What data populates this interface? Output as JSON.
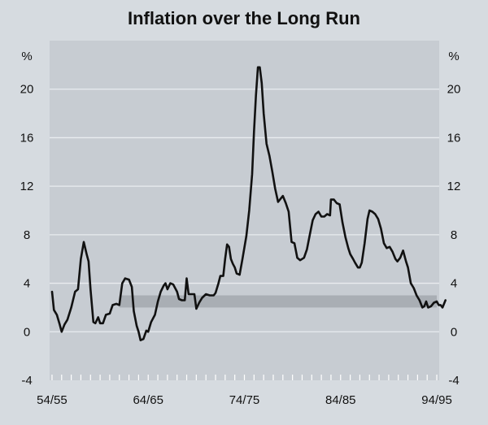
{
  "chart_data": {
    "type": "line",
    "title": "Inflation over the Long Run",
    "y_unit_left": "%",
    "y_unit_right": "%",
    "ylim": [
      -4,
      24
    ],
    "yticks": [
      -4,
      0,
      4,
      8,
      12,
      16,
      20
    ],
    "xlim": [
      1954.75,
      1995.25
    ],
    "xticks": [
      {
        "label": "54/55",
        "x": 1955
      },
      {
        "label": "64/65",
        "x": 1965
      },
      {
        "label": "74/75",
        "x": 1975
      },
      {
        "label": "84/85",
        "x": 1985
      },
      {
        "label": "94/95",
        "x": 1995
      }
    ],
    "grid": true,
    "target_band": {
      "low": 2,
      "high": 3,
      "x_start": 1962,
      "x_end": 1995
    },
    "series": [
      {
        "points": [
          [
            1955.0,
            3.3
          ],
          [
            1955.2,
            1.8
          ],
          [
            1955.5,
            1.4
          ],
          [
            1955.8,
            0.6
          ],
          [
            1956.0,
            0.0
          ],
          [
            1956.3,
            0.6
          ],
          [
            1956.6,
            1.0
          ],
          [
            1957.0,
            2.0
          ],
          [
            1957.4,
            3.3
          ],
          [
            1957.7,
            3.5
          ],
          [
            1958.0,
            6.0
          ],
          [
            1958.3,
            7.4
          ],
          [
            1958.6,
            6.4
          ],
          [
            1958.8,
            5.8
          ],
          [
            1959.0,
            3.5
          ],
          [
            1959.3,
            0.8
          ],
          [
            1959.5,
            0.7
          ],
          [
            1959.8,
            1.2
          ],
          [
            1960.0,
            0.7
          ],
          [
            1960.3,
            0.7
          ],
          [
            1960.6,
            1.4
          ],
          [
            1961.0,
            1.5
          ],
          [
            1961.3,
            2.2
          ],
          [
            1961.7,
            2.3
          ],
          [
            1962.0,
            2.2
          ],
          [
            1962.3,
            4.0
          ],
          [
            1962.6,
            4.4
          ],
          [
            1963.0,
            4.3
          ],
          [
            1963.3,
            3.7
          ],
          [
            1963.5,
            1.7
          ],
          [
            1963.8,
            0.5
          ],
          [
            1964.0,
            0.0
          ],
          [
            1964.2,
            -0.7
          ],
          [
            1964.5,
            -0.6
          ],
          [
            1964.8,
            0.1
          ],
          [
            1965.0,
            0.0
          ],
          [
            1965.3,
            0.8
          ],
          [
            1965.7,
            1.4
          ],
          [
            1966.0,
            2.5
          ],
          [
            1966.3,
            3.3
          ],
          [
            1966.6,
            3.8
          ],
          [
            1966.8,
            4.0
          ],
          [
            1967.0,
            3.5
          ],
          [
            1967.3,
            4.0
          ],
          [
            1967.6,
            3.9
          ],
          [
            1968.0,
            3.3
          ],
          [
            1968.2,
            2.7
          ],
          [
            1968.5,
            2.6
          ],
          [
            1968.8,
            2.6
          ],
          [
            1969.0,
            4.4
          ],
          [
            1969.2,
            3.1
          ],
          [
            1969.5,
            3.1
          ],
          [
            1969.8,
            3.1
          ],
          [
            1970.0,
            1.9
          ],
          [
            1970.3,
            2.4
          ],
          [
            1970.6,
            2.8
          ],
          [
            1971.0,
            3.1
          ],
          [
            1971.4,
            3.0
          ],
          [
            1971.8,
            3.0
          ],
          [
            1972.0,
            3.2
          ],
          [
            1972.3,
            4.0
          ],
          [
            1972.5,
            4.6
          ],
          [
            1972.8,
            4.6
          ],
          [
            1973.0,
            6.0
          ],
          [
            1973.2,
            7.2
          ],
          [
            1973.4,
            7.0
          ],
          [
            1973.6,
            6.0
          ],
          [
            1973.8,
            5.6
          ],
          [
            1974.0,
            5.3
          ],
          [
            1974.2,
            4.8
          ],
          [
            1974.5,
            4.7
          ],
          [
            1974.8,
            6.0
          ],
          [
            1975.2,
            7.9
          ],
          [
            1975.5,
            10.0
          ],
          [
            1975.8,
            13.0
          ],
          [
            1976.0,
            16.5
          ],
          [
            1976.2,
            19.5
          ],
          [
            1976.4,
            21.8
          ],
          [
            1976.6,
            21.8
          ],
          [
            1976.8,
            20.5
          ],
          [
            1977.0,
            18.0
          ],
          [
            1977.3,
            15.5
          ],
          [
            1977.6,
            14.5
          ],
          [
            1977.9,
            13.2
          ],
          [
            1978.2,
            11.8
          ],
          [
            1978.5,
            10.7
          ],
          [
            1978.8,
            11.0
          ],
          [
            1979.0,
            11.2
          ],
          [
            1979.3,
            10.6
          ],
          [
            1979.6,
            9.9
          ],
          [
            1979.9,
            7.4
          ],
          [
            1980.2,
            7.3
          ],
          [
            1980.5,
            6.1
          ],
          [
            1980.8,
            5.9
          ],
          [
            1981.2,
            6.1
          ],
          [
            1981.5,
            6.8
          ],
          [
            1981.8,
            8.0
          ],
          [
            1982.1,
            9.2
          ],
          [
            1982.4,
            9.7
          ],
          [
            1982.7,
            9.9
          ],
          [
            1983.0,
            9.5
          ],
          [
            1983.3,
            9.5
          ],
          [
            1983.6,
            9.7
          ],
          [
            1983.9,
            9.6
          ],
          [
            1984.0,
            10.9
          ],
          [
            1984.3,
            10.9
          ],
          [
            1984.6,
            10.6
          ],
          [
            1984.9,
            10.5
          ],
          [
            1985.2,
            9.0
          ],
          [
            1985.5,
            7.8
          ],
          [
            1985.8,
            6.9
          ],
          [
            1986.0,
            6.4
          ],
          [
            1986.3,
            6.0
          ],
          [
            1986.5,
            5.7
          ],
          [
            1986.8,
            5.3
          ],
          [
            1987.0,
            5.3
          ],
          [
            1987.2,
            5.7
          ],
          [
            1987.5,
            7.3
          ],
          [
            1987.8,
            9.3
          ],
          [
            1988.0,
            10.0
          ],
          [
            1988.3,
            9.9
          ],
          [
            1988.6,
            9.7
          ],
          [
            1988.9,
            9.3
          ],
          [
            1989.2,
            8.5
          ],
          [
            1989.5,
            7.3
          ],
          [
            1989.8,
            6.9
          ],
          [
            1990.1,
            7.0
          ],
          [
            1990.4,
            6.6
          ],
          [
            1990.7,
            6.0
          ],
          [
            1990.9,
            5.8
          ],
          [
            1991.2,
            6.1
          ],
          [
            1991.5,
            6.7
          ],
          [
            1991.8,
            5.8
          ],
          [
            1992.0,
            5.3
          ],
          [
            1992.3,
            4.0
          ],
          [
            1992.6,
            3.6
          ],
          [
            1992.9,
            3.0
          ],
          [
            1993.2,
            2.6
          ],
          [
            1993.5,
            2.0
          ],
          [
            1993.7,
            2.1
          ],
          [
            1993.9,
            2.5
          ],
          [
            1994.1,
            2.0
          ],
          [
            1994.4,
            2.1
          ],
          [
            1994.7,
            2.4
          ],
          [
            1995.0,
            2.5
          ],
          [
            1995.2,
            2.2
          ],
          [
            1995.4,
            2.2
          ],
          [
            1995.6,
            2.0
          ],
          [
            1995.9,
            2.6
          ]
        ]
      }
    ]
  }
}
